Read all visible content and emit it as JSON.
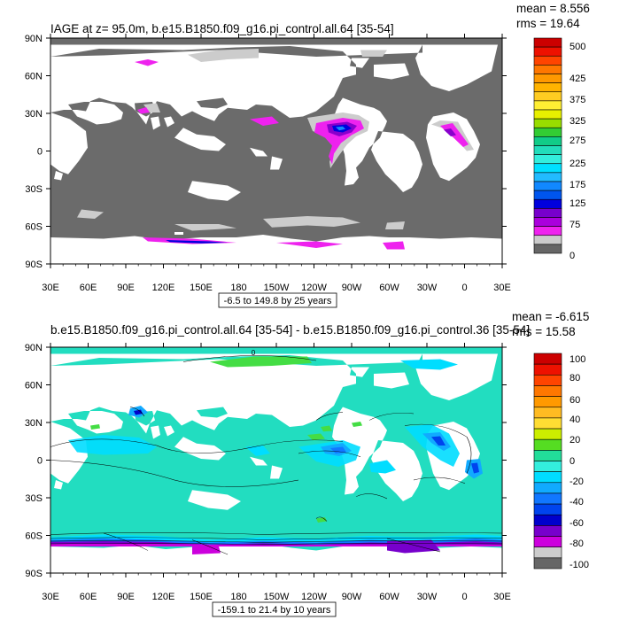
{
  "panels": [
    {
      "title": "IAGE at z=  95.0m, b.e15.B1850.f09_g16.pi_control.all.64 [35-54]",
      "mean_label": "mean = 8.556",
      "rms_label": "rms = 19.64",
      "range_label": "-6.5 to 149.8 by 25 years",
      "lat_ticks": [
        "90N",
        "60N",
        "30N",
        "0",
        "30S",
        "60S",
        "90S"
      ],
      "lon_ticks": [
        "30E",
        "60E",
        "90E",
        "120E",
        "150E",
        "180",
        "150W",
        "120W",
        "90W",
        "60W",
        "30W",
        "0",
        "30E"
      ],
      "colorbar": {
        "labels": [
          "500",
          "425",
          "375",
          "325",
          "275",
          "225",
          "175",
          "125",
          "75",
          "0"
        ],
        "colors": [
          "#cc0000",
          "#ee1100",
          "#ff4400",
          "#ff7700",
          "#ff9900",
          "#ffb300",
          "#ffcc22",
          "#ffee33",
          "#e8f000",
          "#99dd00",
          "#33cc33",
          "#11cc88",
          "#22ddbb",
          "#33eedd",
          "#00e0ff",
          "#22bbff",
          "#1188ff",
          "#0055ee",
          "#0000dd",
          "#7700cc",
          "#aa00dd",
          "#ee22ee",
          "#cccccc",
          "#666666"
        ]
      },
      "contour_label": ""
    },
    {
      "title": "b.e15.B1850.f09_g16.pi_control.all.64 [35-54] - b.e15.B1850.f09_g16.pi_control.36 [35-54]",
      "mean_label": "mean = -6.615",
      "rms_label": "rms = 15.58",
      "range_label": "-159.1 to 21.4 by 10 years",
      "lat_ticks": [
        "90N",
        "60N",
        "30N",
        "0",
        "30S",
        "60S",
        "90S"
      ],
      "lon_ticks": [
        "30E",
        "60E",
        "90E",
        "120E",
        "150E",
        "180",
        "150W",
        "120W",
        "90W",
        "60W",
        "30W",
        "0",
        "30E"
      ],
      "colorbar": {
        "labels": [
          "100",
          "80",
          "60",
          "40",
          "20",
          "0",
          "-20",
          "-40",
          "-60",
          "-80",
          "-100"
        ],
        "colors": [
          "#cc0000",
          "#ee1100",
          "#ff4400",
          "#ff7700",
          "#ff9900",
          "#ffbb22",
          "#ffdd33",
          "#ccee00",
          "#55dd22",
          "#22dd99",
          "#33eedd",
          "#00ddff",
          "#11aaff",
          "#1177ff",
          "#0044ee",
          "#0000cc",
          "#7700cc",
          "#cc00dd",
          "#cccccc",
          "#666666"
        ]
      },
      "contour_label": "0"
    }
  ]
}
